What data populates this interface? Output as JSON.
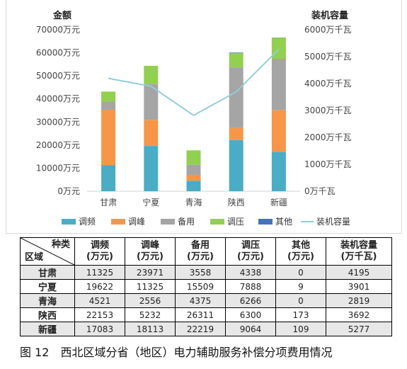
{
  "chart_data": {
    "type": "bar",
    "stacked": true,
    "categories": [
      "甘肃",
      "宁夏",
      "青海",
      "陕西",
      "新疆"
    ],
    "left_axis": {
      "title": "金额",
      "ylim": [
        0,
        70000
      ],
      "ticks": [
        "0万元",
        "10000万元",
        "20000万元",
        "30000万元",
        "40000万元",
        "50000万元",
        "60000万元",
        "70000万元"
      ]
    },
    "right_axis": {
      "title": "装机容量",
      "ylim": [
        0,
        6000
      ],
      "ticks": [
        "0万千瓦",
        "1000万千瓦",
        "2000万千瓦",
        "3000万千瓦",
        "4000万千瓦",
        "5000万千瓦",
        "6000万千瓦"
      ]
    },
    "series": [
      {
        "name": "调频",
        "color": "#4bacc6",
        "axis": "left",
        "values": [
          11325,
          19622,
          4521,
          22153,
          17083
        ]
      },
      {
        "name": "调峰",
        "color": "#f79646",
        "axis": "left",
        "values": [
          23971,
          11325,
          2556,
          5232,
          18113
        ]
      },
      {
        "name": "备用",
        "color": "#a5a5a5",
        "axis": "left",
        "values": [
          3558,
          15509,
          4375,
          26311,
          22219
        ]
      },
      {
        "name": "调压",
        "color": "#92d050",
        "axis": "left",
        "values": [
          4338,
          7888,
          6266,
          6300,
          9064
        ]
      },
      {
        "name": "其他",
        "color": "#4472c4",
        "axis": "left",
        "values": [
          0,
          9,
          0,
          173,
          109
        ]
      },
      {
        "name": "装机容量",
        "color": "#92cddc",
        "axis": "right",
        "type": "line",
        "values": [
          4195,
          3901,
          2819,
          3692,
          5277
        ]
      }
    ],
    "legend_position": "bottom",
    "grid": false
  },
  "table": {
    "corner_top": "种类",
    "corner_bottom": "区域",
    "headers": [
      {
        "line1": "调频",
        "line2": "(万元)"
      },
      {
        "line1": "调峰",
        "line2": "(万元)"
      },
      {
        "line1": "备用",
        "line2": "(万元)"
      },
      {
        "line1": "调压",
        "line2": "(万元)"
      },
      {
        "line1": "其他",
        "line2": "(万元)"
      },
      {
        "line1": "装机容量",
        "line2": "(万千瓦)"
      }
    ],
    "rows": [
      {
        "region": "甘肃",
        "cells": [
          "11325",
          "23971",
          "3558",
          "4338",
          "0",
          "4195"
        ]
      },
      {
        "region": "宁夏",
        "cells": [
          "19622",
          "11325",
          "15509",
          "7888",
          "9",
          "3901"
        ]
      },
      {
        "region": "青海",
        "cells": [
          "4521",
          "2556",
          "4375",
          "6266",
          "0",
          "2819"
        ]
      },
      {
        "region": "陕西",
        "cells": [
          "22153",
          "5232",
          "26311",
          "6300",
          "173",
          "3692"
        ]
      },
      {
        "region": "新疆",
        "cells": [
          "17083",
          "18113",
          "22219",
          "9064",
          "109",
          "5277"
        ]
      }
    ]
  },
  "caption": "图 12　西北区域分省（地区）电力辅助服务补偿分项费用情况"
}
